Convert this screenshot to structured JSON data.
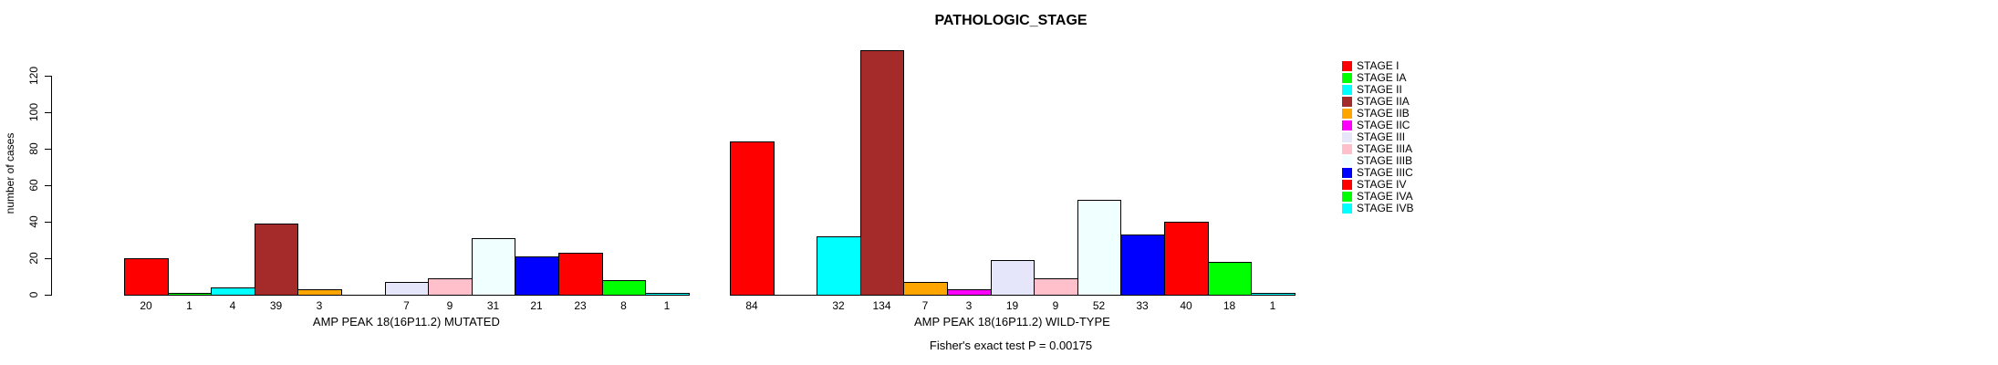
{
  "title": "PATHOLOGIC_STAGE",
  "chart_data": {
    "type": "bar",
    "title": "PATHOLOGIC_STAGE",
    "xlabel": "",
    "ylabel": "number of cases",
    "ylim": [
      0,
      130
    ],
    "yticks": [
      0,
      20,
      40,
      60,
      80,
      100,
      120
    ],
    "grid": false,
    "legend_position": "right-outside",
    "categories": [
      "STAGE I",
      "STAGE IA",
      "STAGE II",
      "STAGE IIA",
      "STAGE IIB",
      "STAGE IIC",
      "STAGE III",
      "STAGE IIIA",
      "STAGE IIIB",
      "STAGE IIIC",
      "STAGE IV",
      "STAGE IVA",
      "STAGE IVB"
    ],
    "colors": [
      "#FF0000",
      "#00FF00",
      "#00FFFF",
      "#A52A2A",
      "#FFA500",
      "#FF00FF",
      "#E6E6FA",
      "#FFC0CB",
      "#F0FFFF",
      "#0000FF",
      "#FF0000",
      "#00FF00",
      "#00FFFF"
    ],
    "series": [
      {
        "name": "AMP PEAK 18(16P11.2) MUTATED",
        "values": [
          20,
          1,
          4,
          39,
          3,
          0,
          7,
          9,
          31,
          21,
          23,
          8,
          1
        ]
      },
      {
        "name": "AMP PEAK 18(16P11.2) WILD-TYPE",
        "values": [
          84,
          0,
          32,
          134,
          7,
          3,
          19,
          9,
          52,
          33,
          40,
          18,
          1
        ]
      }
    ],
    "bar_value_labels_shown_for_zero": false,
    "annotation": "Fisher's exact test P = 0.00175"
  },
  "legend": {
    "items": [
      {
        "label": "STAGE I",
        "color": "#FF0000"
      },
      {
        "label": "STAGE IA",
        "color": "#00FF00"
      },
      {
        "label": "STAGE II",
        "color": "#00FFFF"
      },
      {
        "label": "STAGE IIA",
        "color": "#A52A2A"
      },
      {
        "label": "STAGE IIB",
        "color": "#FFA500"
      },
      {
        "label": "STAGE IIC",
        "color": "#FF00FF"
      },
      {
        "label": "STAGE III",
        "color": "#E6E6FA"
      },
      {
        "label": "STAGE IIIA",
        "color": "#FFC0CB"
      },
      {
        "label": "STAGE IIIB",
        "color": "#F0FFFF"
      },
      {
        "label": "STAGE IIIC",
        "color": "#0000FF"
      },
      {
        "label": "STAGE IV",
        "color": "#FF0000"
      },
      {
        "label": "STAGE IVA",
        "color": "#00FF00"
      },
      {
        "label": "STAGE IVB",
        "color": "#00FFFF"
      }
    ]
  }
}
